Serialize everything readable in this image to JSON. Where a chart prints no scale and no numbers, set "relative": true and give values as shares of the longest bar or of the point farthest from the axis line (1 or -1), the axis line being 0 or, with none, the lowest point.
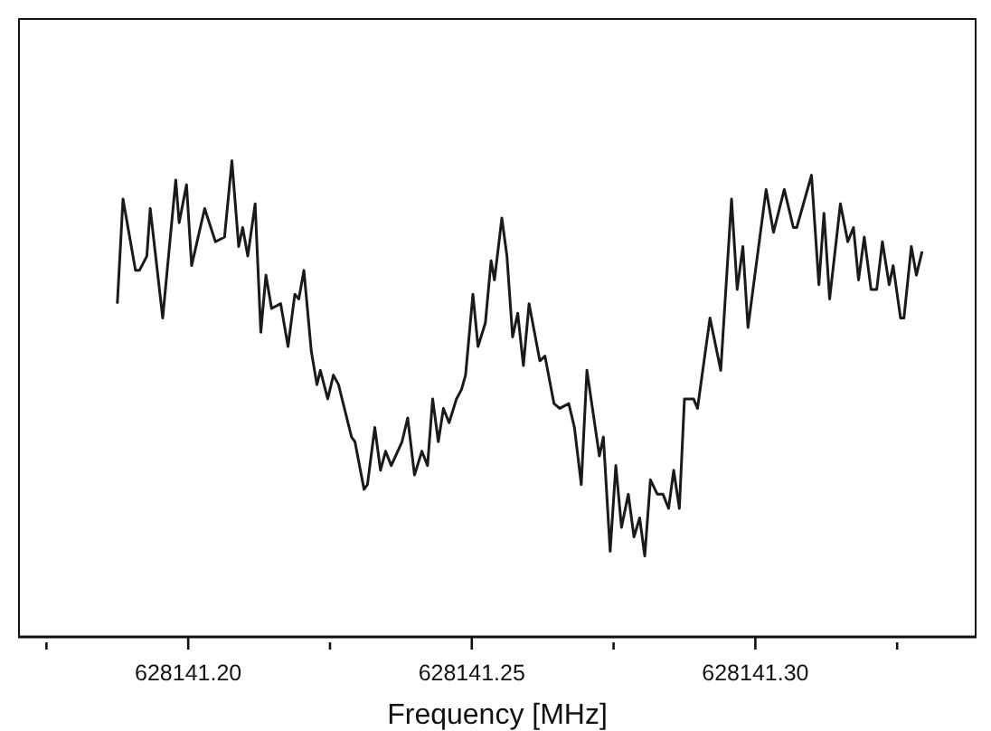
{
  "chart_data": {
    "type": "line",
    "relative": true,
    "xlabel": "Frequency [MHz]",
    "xlim": [
      628141.17,
      628141.339
    ],
    "xticks": [
      {
        "value": 628141.175,
        "label": null
      },
      {
        "value": 628141.2,
        "label": "628141.20"
      },
      {
        "value": 628141.225,
        "label": null
      },
      {
        "value": 628141.25,
        "label": "628141.25"
      },
      {
        "value": 628141.275,
        "label": null
      },
      {
        "value": 628141.3,
        "label": "628141.30"
      },
      {
        "value": 628141.325,
        "label": null
      }
    ],
    "tick_labels": "x",
    "grid": false,
    "legend": false,
    "marker": "none",
    "line_style": "solid",
    "series": [
      {
        "color": "#1a1a1a",
        "x": [
          628141.1875,
          628141.1885,
          628141.1907,
          628141.1914,
          628141.1927,
          628141.1933,
          628141.1955,
          628141.1978,
          628141.1984,
          628141.1997,
          628141.2006,
          628141.2029,
          628141.2048,
          628141.2064,
          628141.2077,
          628141.2089,
          628141.2096,
          628141.2105,
          628141.2118,
          628141.2128,
          628141.2137,
          628141.2147,
          628141.2163,
          628141.2176,
          628141.2188,
          628141.2195,
          628141.2204,
          628141.2217,
          628141.2227,
          628141.2233,
          628141.2246,
          628141.2256,
          628141.2265,
          628141.2288,
          628141.2294,
          628141.231,
          628141.2316,
          628141.2329,
          628141.2339,
          628141.2348,
          628141.2358,
          628141.2377,
          628141.2387,
          628141.2399,
          628141.2412,
          628141.2422,
          628141.2431,
          628141.2441,
          628141.245,
          628141.246,
          628141.2473,
          628141.2482,
          628141.2489,
          628141.2502,
          628141.2511,
          628141.2524,
          628141.2534,
          628141.254,
          628141.2553,
          628141.2562,
          628141.2572,
          628141.2581,
          628141.2591,
          628141.2601,
          628141.262,
          628141.2629,
          628141.2645,
          628141.2655,
          628141.2671,
          628141.2681,
          628141.2693,
          628141.2703,
          628141.2725,
          628141.2732,
          628141.2744,
          628141.2754,
          628141.2764,
          628141.2776,
          628141.2786,
          628141.2796,
          628141.2805,
          628141.2815,
          628141.2827,
          628141.2837,
          628141.2847,
          628141.2856,
          628141.2866,
          628141.2875,
          628141.2891,
          628141.2898,
          628141.292,
          628141.2939,
          628141.2958,
          628141.2968,
          628141.2978,
          628141.2987,
          628141.3019,
          628141.3032,
          628141.3051,
          628141.3067,
          628141.3073,
          628141.3099,
          628141.3112,
          628141.3121,
          628141.3131,
          628141.315,
          628141.3163,
          628141.3173,
          628141.3182,
          628141.3192,
          628141.3204,
          628141.3214,
          628141.3224,
          628141.3236,
          628141.3243,
          628141.3256,
          628141.3262,
          628141.3275,
          628141.3284,
          628141.3294
        ],
        "values": [
          0.7,
          0.92,
          0.77,
          0.77,
          0.8,
          0.9,
          0.67,
          0.96,
          0.87,
          0.95,
          0.78,
          0.9,
          0.83,
          0.84,
          1.0,
          0.82,
          0.86,
          0.8,
          0.91,
          0.64,
          0.76,
          0.69,
          0.7,
          0.61,
          0.72,
          0.71,
          0.77,
          0.6,
          0.53,
          0.56,
          0.5,
          0.55,
          0.53,
          0.42,
          0.41,
          0.31,
          0.32,
          0.44,
          0.35,
          0.39,
          0.36,
          0.41,
          0.46,
          0.34,
          0.39,
          0.36,
          0.5,
          0.41,
          0.48,
          0.45,
          0.5,
          0.52,
          0.55,
          0.72,
          0.61,
          0.66,
          0.79,
          0.75,
          0.88,
          0.8,
          0.63,
          0.68,
          0.57,
          0.7,
          0.58,
          0.59,
          0.49,
          0.48,
          0.49,
          0.44,
          0.32,
          0.56,
          0.38,
          0.42,
          0.18,
          0.36,
          0.23,
          0.3,
          0.21,
          0.25,
          0.17,
          0.33,
          0.3,
          0.3,
          0.27,
          0.35,
          0.27,
          0.5,
          0.5,
          0.48,
          0.67,
          0.56,
          0.92,
          0.73,
          0.82,
          0.65,
          0.94,
          0.85,
          0.94,
          0.86,
          0.86,
          0.97,
          0.74,
          0.89,
          0.71,
          0.91,
          0.83,
          0.86,
          0.75,
          0.84,
          0.73,
          0.73,
          0.83,
          0.74,
          0.78,
          0.67,
          0.67,
          0.82,
          0.76,
          0.81
        ]
      }
    ]
  }
}
